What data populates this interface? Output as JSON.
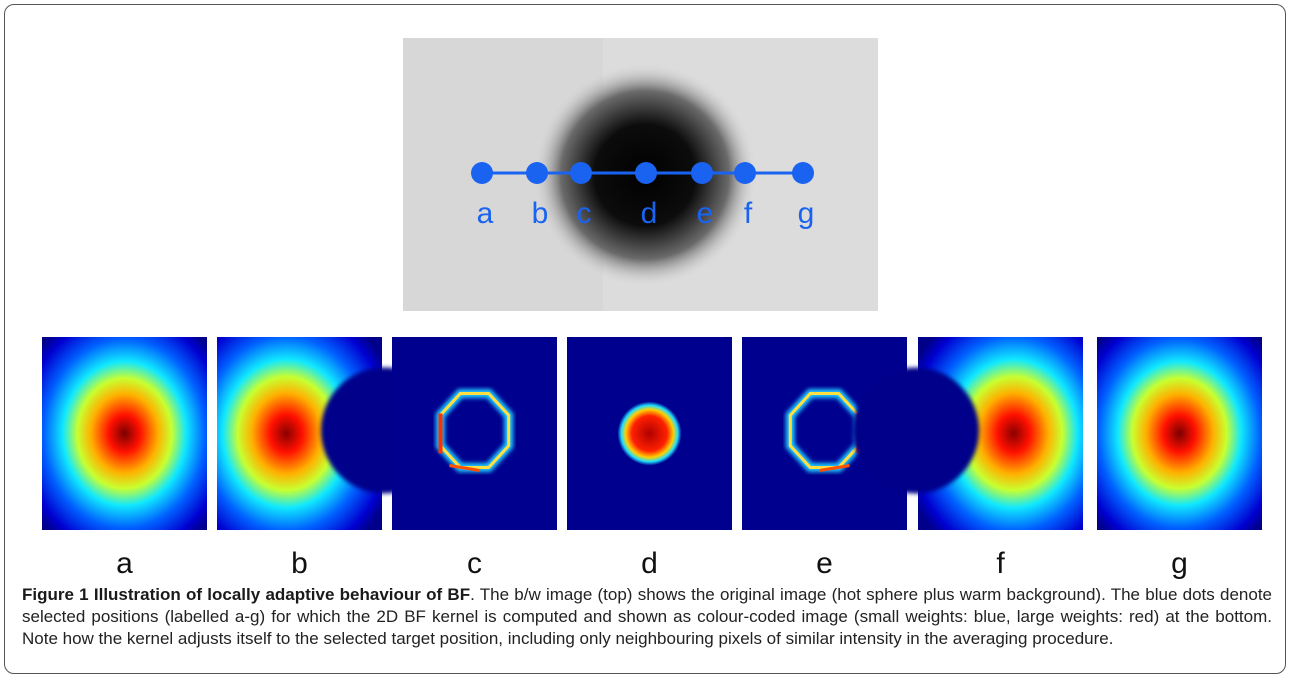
{
  "figure": {
    "top_labels": [
      "a",
      "b",
      "c",
      "d",
      "e",
      "f",
      "g"
    ],
    "panel_labels": [
      "a",
      "b",
      "c",
      "d",
      "e",
      "f",
      "g"
    ],
    "caption": {
      "title": "Figure 1 Illustration of locally adaptive behaviour of BF",
      "text": ". The b/w image (top) shows the original image (hot sphere plus warm background). The blue dots denote selected positions (labelled a-g) for which the 2D BF kernel is computed and shown as colour-coded image (small weights: blue, large weights: red) at the bottom. Note how the kernel adjusts itself to the selected target position, including only neighbouring pixels of similar intensity in the averaging procedure."
    }
  }
}
